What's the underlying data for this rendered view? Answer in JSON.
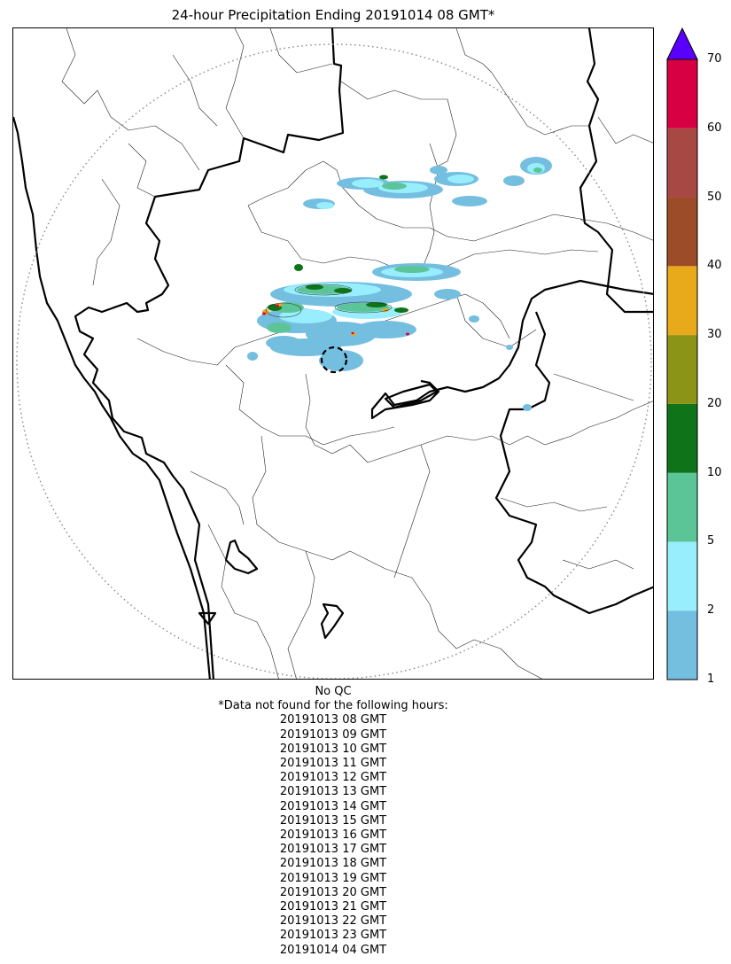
{
  "title": "24-hour Precipitation Ending 20191014 08 GMT*",
  "colorbar": {
    "bins": [
      {
        "from": 1,
        "to": 2,
        "color": "#74bee0"
      },
      {
        "from": 2,
        "to": 5,
        "color": "#98eefd"
      },
      {
        "from": 5,
        "to": 10,
        "color": "#5cc598"
      },
      {
        "from": 10,
        "to": 20,
        "color": "#0e7319"
      },
      {
        "from": 20,
        "to": 30,
        "color": "#8c9417"
      },
      {
        "from": 30,
        "to": 40,
        "color": "#e8aa1b"
      },
      {
        "from": 40,
        "to": 50,
        "color": "#9c4c28"
      },
      {
        "from": 50,
        "to": 60,
        "color": "#a84844"
      },
      {
        "from": 60,
        "to": 70,
        "color": "#d60043"
      }
    ],
    "extend_color": "#5a00ff",
    "ticks": [
      "1",
      "2",
      "5",
      "10",
      "20",
      "30",
      "40",
      "50",
      "60",
      "70"
    ]
  },
  "notes": {
    "qc": "No QC",
    "missing_header": "*Data not found for the following hours:",
    "missing_hours": [
      "20191013 08 GMT",
      "20191013 09 GMT",
      "20191013 10 GMT",
      "20191013 11 GMT",
      "20191013 12 GMT",
      "20191013 13 GMT",
      "20191013 14 GMT",
      "20191013 15 GMT",
      "20191013 16 GMT",
      "20191013 17 GMT",
      "20191013 18 GMT",
      "20191013 19 GMT",
      "20191013 20 GMT",
      "20191013 21 GMT",
      "20191013 22 GMT",
      "20191013 23 GMT",
      "20191014 04 GMT"
    ]
  }
}
